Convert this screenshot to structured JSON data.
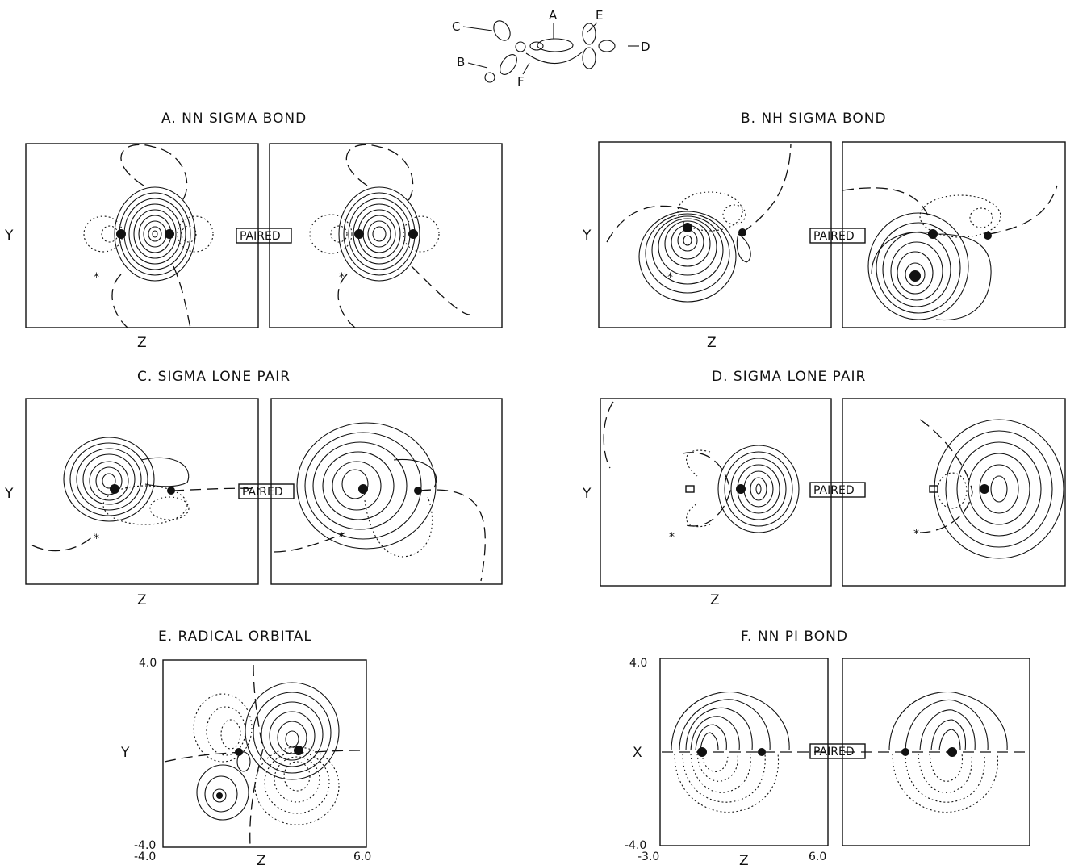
{
  "schematic": {
    "labels": [
      "A",
      "B",
      "C",
      "D",
      "E",
      "F"
    ]
  },
  "panels": [
    {
      "id": "A",
      "title": "A.   NN  SIGMA  BOND",
      "ylabel": "Y",
      "xlabel": "Z",
      "tag": "PAIRED"
    },
    {
      "id": "B",
      "title": "B.   NH  SIGMA  BOND",
      "ylabel": "Y",
      "xlabel": "Z",
      "tag": "PAIRED"
    },
    {
      "id": "C",
      "title": "C.  SIGMA  LONE  PAIR",
      "ylabel": "Y",
      "xlabel": "Z",
      "tag": "PAIRED"
    },
    {
      "id": "D",
      "title": "D.  SIGMA  LONE  PAIR",
      "ylabel": "Y",
      "xlabel": "Z",
      "tag": "PAIRED"
    },
    {
      "id": "E",
      "title": "E.    RADICAL  ORBITAL",
      "ylabel": "Y",
      "xlabel": "Z",
      "ticks": {
        "ytop": "4.0",
        "ybottom": "-4.0",
        "xleft": "-4.0",
        "xright": "6.0"
      }
    },
    {
      "id": "F",
      "title": "F.    NN   PI   BOND",
      "ylabel": "X",
      "xlabel": "Z",
      "tag": "PAIRED",
      "ticks": {
        "ytop": "4.0",
        "ybottom": "-4.0",
        "xleft": "-3.0",
        "xright": "6.0"
      }
    }
  ]
}
